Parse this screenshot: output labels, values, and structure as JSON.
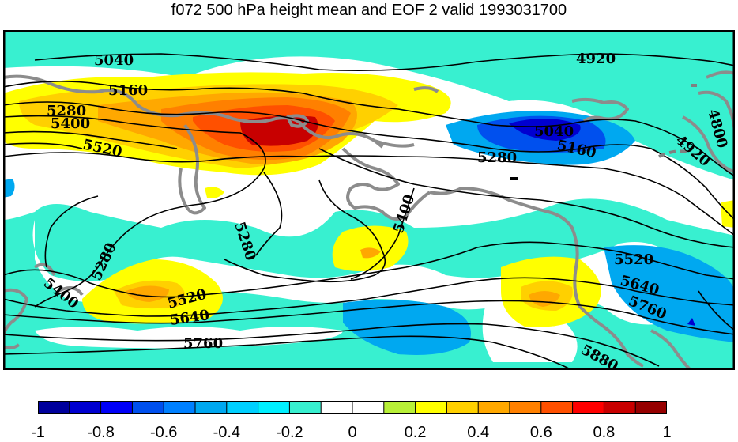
{
  "title": "f072 500 hPa height mean and EOF 2 valid 1993031700",
  "contour_labels": {
    "l5040a": "5040",
    "l4920a": "4920",
    "l5160a": "5160",
    "l5280a": "5280",
    "l5400a": "5400",
    "l5520a": "5520",
    "l4800": "4800",
    "l5040b": "5040",
    "l5160b": "5160",
    "l4920b": "4920",
    "l5280b": "5280",
    "l5400b": "5400",
    "l5280c": "5280",
    "l5280d": "5280",
    "l5400c": "5400",
    "l5520b": "5520",
    "l5640a": "5640",
    "l5760a": "5760",
    "l5520c": "5520",
    "l5640b": "5640",
    "l5760b": "5760",
    "l5880": "5880"
  },
  "colorbar": {
    "labels": [
      "-1",
      "-0.8",
      "-0.6",
      "-0.4",
      "-0.2",
      "0",
      "0.2",
      "0.4",
      "0.6",
      "0.8",
      "1"
    ],
    "colors": [
      "#00009c",
      "#0000d0",
      "#0000f8",
      "#0050ee",
      "#0080ff",
      "#00a8f0",
      "#00d0ff",
      "#00f0ff",
      "#38f0d0",
      "#ffffff",
      "#ffffff",
      "#b8f038",
      "#ffff00",
      "#ffd000",
      "#ffa800",
      "#ff8000",
      "#ff5000",
      "#ff0000",
      "#c80000",
      "#960000"
    ]
  }
}
